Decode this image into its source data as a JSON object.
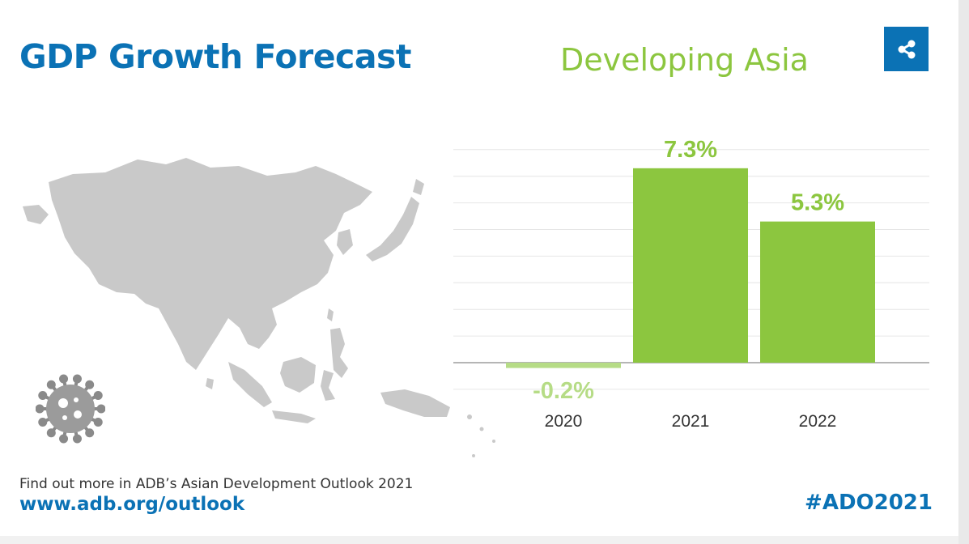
{
  "header": {
    "title": "GDP Growth Forecast",
    "subtitle": "Developing Asia",
    "share_icon": "share-icon"
  },
  "colors": {
    "brand_blue": "#0b72b5",
    "bar_green": "#8cc63f",
    "negative_green": "#b6dc86",
    "map_gray": "#c9c9c9"
  },
  "chart_data": {
    "type": "bar",
    "categories": [
      "2020",
      "2021",
      "2022"
    ],
    "values": [
      -0.2,
      7.3,
      5.3
    ],
    "value_labels": [
      "-0.2%",
      "7.3%",
      "5.3%"
    ],
    "title": "Developing Asia",
    "xlabel": "",
    "ylabel": "",
    "ylim": [
      -1,
      8
    ],
    "grid": true,
    "legend": "none"
  },
  "illustration": {
    "map_icon": "asia-map-icon",
    "virus_icon": "coronavirus-icon"
  },
  "footer": {
    "text": "Find out more in ADB’s Asian Development Outlook 2021",
    "link": "www.adb.org/outlook",
    "hashtag": "#ADO2021"
  }
}
